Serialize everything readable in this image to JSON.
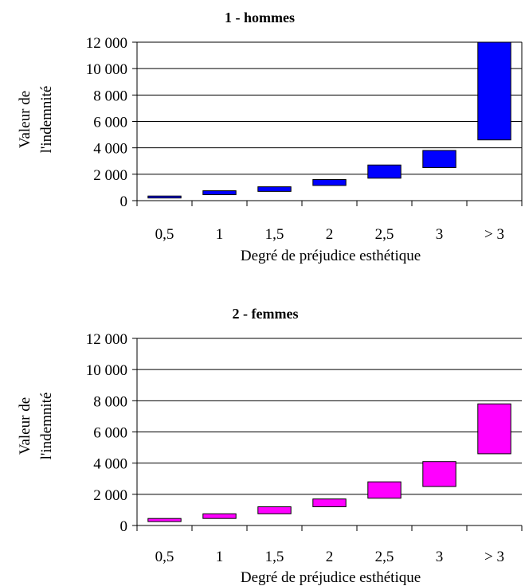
{
  "chart_data": [
    {
      "type": "bar",
      "title": "1 - hommes",
      "xlabel": "Degré de préjudice esthétique",
      "ylabel_lines": [
        "Valeur de",
        "l'indemnité"
      ],
      "categories": [
        "0,5",
        "1",
        "1,5",
        "2",
        "2,5",
        "3",
        "> 3"
      ],
      "ranges": [
        [
          200,
          350
        ],
        [
          450,
          750
        ],
        [
          700,
          1050
        ],
        [
          1150,
          1600
        ],
        [
          1700,
          2700
        ],
        [
          2500,
          3800
        ],
        [
          4600,
          12000
        ]
      ],
      "ylim": [
        0,
        12000
      ],
      "yticks": [
        0,
        2000,
        4000,
        6000,
        8000,
        10000,
        12000
      ],
      "ytick_labels": [
        "0",
        "2 000",
        "4 000",
        "6 000",
        "8 000",
        "10 000",
        "12 000"
      ],
      "grid": true,
      "color": "#0000ff"
    },
    {
      "type": "bar",
      "title": "2 - femmes",
      "xlabel": "Degré de préjudice esthétique",
      "ylabel_lines": [
        "Valeur de",
        "l'indemnité"
      ],
      "categories": [
        "0,5",
        "1",
        "1,5",
        "2",
        "2,5",
        "3",
        "> 3"
      ],
      "ranges": [
        [
          250,
          450
        ],
        [
          450,
          750
        ],
        [
          750,
          1200
        ],
        [
          1200,
          1700
        ],
        [
          1750,
          2800
        ],
        [
          2500,
          4100
        ],
        [
          4600,
          7800
        ]
      ],
      "ylim": [
        0,
        12000
      ],
      "yticks": [
        0,
        2000,
        4000,
        6000,
        8000,
        10000,
        12000
      ],
      "ytick_labels": [
        "0",
        "2 000",
        "4 000",
        "6 000",
        "8 000",
        "10 000",
        "12 000"
      ],
      "grid": true,
      "color": "#ff00ff"
    }
  ]
}
